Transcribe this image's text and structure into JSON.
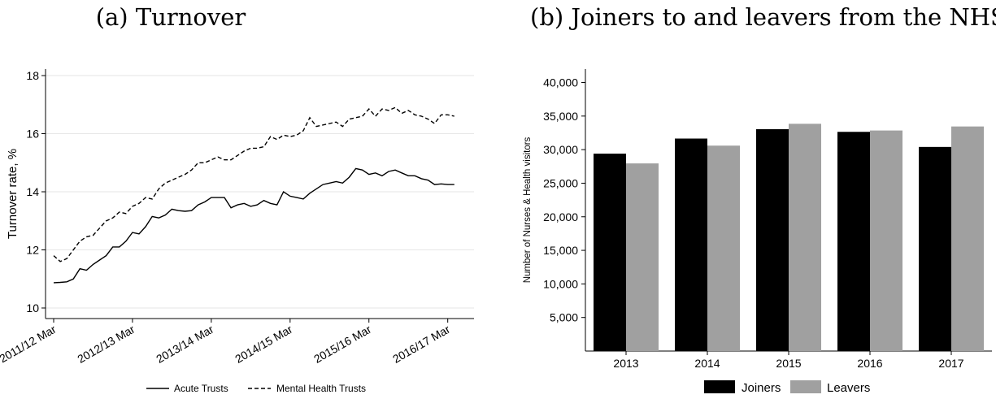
{
  "panels": {
    "a": {
      "title": "(a) Turnover"
    },
    "b": {
      "title": "(b) Joiners to and leavers from the NHS"
    }
  },
  "chart_data": [
    {
      "type": "line",
      "title": "(a) Turnover",
      "xlabel": "",
      "ylabel": "Turnover rate, %",
      "ylim": [
        10,
        18
      ],
      "yticks": [
        10,
        12,
        14,
        16,
        18
      ],
      "xticks": [
        "2011/12 Mar",
        "2012/13 Mar",
        "2013/14 Mar",
        "2014/15 Mar",
        "2015/16 Mar",
        "2016/17 Mar"
      ],
      "x_unit": "months since 2011/12 Mar",
      "x": [
        0,
        1,
        2,
        3,
        4,
        5,
        6,
        7,
        8,
        9,
        10,
        11,
        12,
        13,
        14,
        15,
        16,
        17,
        18,
        19,
        20,
        21,
        22,
        23,
        24,
        25,
        26,
        27,
        28,
        29,
        30,
        31,
        32,
        33,
        34,
        35,
        36,
        37,
        38,
        39,
        40,
        41,
        42,
        43,
        44,
        45,
        46,
        47,
        48,
        49,
        50,
        51,
        52,
        53,
        54,
        55,
        56,
        57,
        58,
        59,
        60,
        61
      ],
      "grid": true,
      "legend": "bottom",
      "series": [
        {
          "name": "Acute Trusts",
          "style": "solid",
          "values": [
            10.87,
            10.88,
            10.9,
            11.0,
            11.35,
            11.3,
            11.5,
            11.65,
            11.8,
            12.1,
            12.1,
            12.3,
            12.6,
            12.55,
            12.8,
            13.15,
            13.1,
            13.2,
            13.4,
            13.35,
            13.33,
            13.35,
            13.55,
            13.65,
            13.8,
            13.8,
            13.8,
            13.45,
            13.55,
            13.6,
            13.5,
            13.55,
            13.7,
            13.6,
            13.55,
            14.0,
            13.85,
            13.8,
            13.75,
            13.95,
            14.1,
            14.25,
            14.3,
            14.35,
            14.3,
            14.5,
            14.8,
            14.75,
            14.6,
            14.65,
            14.55,
            14.7,
            14.75,
            14.65,
            14.55,
            14.55,
            14.45,
            14.4,
            14.25,
            14.27,
            14.25,
            14.25
          ]
        },
        {
          "name": "Mental Health Trusts",
          "style": "dashed",
          "values": [
            11.8,
            11.6,
            11.7,
            12.0,
            12.3,
            12.45,
            12.5,
            12.75,
            13.0,
            13.1,
            13.3,
            13.25,
            13.5,
            13.6,
            13.8,
            13.75,
            14.1,
            14.3,
            14.4,
            14.5,
            14.6,
            14.75,
            15.0,
            15.0,
            15.1,
            15.2,
            15.1,
            15.1,
            15.25,
            15.4,
            15.5,
            15.5,
            15.55,
            15.9,
            15.8,
            15.95,
            15.9,
            15.95,
            16.1,
            16.55,
            16.25,
            16.3,
            16.35,
            16.4,
            16.25,
            16.5,
            16.55,
            16.6,
            16.85,
            16.6,
            16.85,
            16.8,
            16.9,
            16.7,
            16.8,
            16.65,
            16.6,
            16.5,
            16.35,
            16.65,
            16.65,
            16.6
          ]
        }
      ]
    },
    {
      "type": "bar",
      "title": "(b) Joiners to and leavers from the NHS",
      "xlabel": "",
      "ylabel": "Number of Nurses & Health visitors",
      "categories": [
        "2013",
        "2014",
        "2015",
        "2016",
        "2017"
      ],
      "ylim": [
        0,
        42000
      ],
      "yticks": [
        5000,
        10000,
        15000,
        20000,
        25000,
        30000,
        35000,
        40000
      ],
      "ytick_labels": [
        "5,000",
        "10,000",
        "15,000",
        "20,000",
        "25,000",
        "30,000",
        "35,000",
        "40,000"
      ],
      "grid": false,
      "legend": "bottom",
      "series": [
        {
          "name": "Joiners",
          "color": "#000000",
          "values": [
            29400,
            31650,
            33050,
            32650,
            30400
          ]
        },
        {
          "name": "Leavers",
          "color": "#a0a0a0",
          "values": [
            27950,
            30600,
            33850,
            32850,
            33450
          ]
        }
      ]
    }
  ]
}
